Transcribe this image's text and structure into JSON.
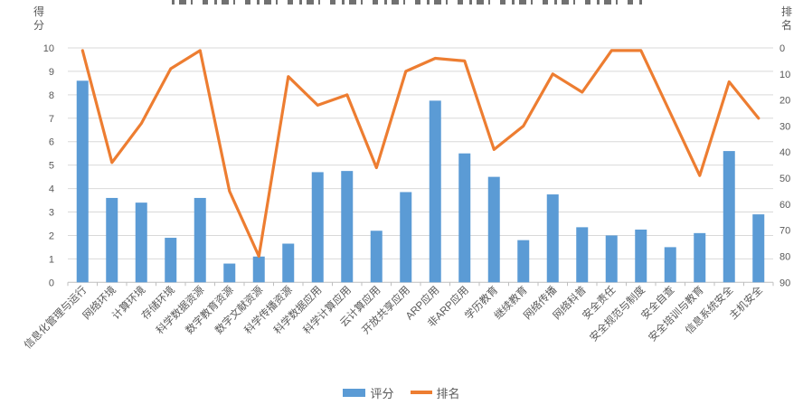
{
  "chart_data": {
    "type": "bar",
    "combo": "bar+line",
    "title": "",
    "title_readable": false,
    "categories": [
      "信息化管理与运行",
      "网络环境",
      "计算环境",
      "存储环境",
      "科学数据资源",
      "数字教育资源",
      "数字文献资源",
      "科学传播资源",
      "科学数据应用",
      "科学计算应用",
      "云计算应用",
      "开放共享应用",
      "ARP应用",
      "非ARP应用",
      "学历教育",
      "继续教育",
      "网络传播",
      "网络科普",
      "安全责任",
      "安全规范与制度",
      "安全自查",
      "安全培训与教育",
      "信息系统安全",
      "主机安全"
    ],
    "series": [
      {
        "name": "评分",
        "type": "bar",
        "axis": "left",
        "color": "#5B9BD5",
        "values": [
          8.6,
          3.6,
          3.4,
          1.9,
          3.6,
          0.8,
          1.1,
          1.65,
          4.7,
          4.75,
          2.2,
          3.85,
          7.75,
          5.5,
          4.5,
          1.8,
          3.75,
          2.35,
          2.0,
          2.25,
          1.5,
          2.1,
          5.6,
          2.9
        ]
      },
      {
        "name": "排名",
        "type": "line",
        "axis": "right",
        "color": "#ED7D31",
        "values": [
          1,
          44,
          29,
          8,
          1,
          55,
          80,
          11,
          22,
          18,
          46,
          9,
          4,
          5,
          39,
          30,
          10,
          17,
          1,
          1,
          25,
          49,
          13,
          27
        ]
      }
    ],
    "left_axis": {
      "title": "得分",
      "min": 0,
      "max": 10,
      "step": 1
    },
    "right_axis": {
      "title": "排名",
      "min": 0,
      "max": 90,
      "step": 10,
      "inverted": true
    },
    "grid": true,
    "legend_position": "bottom"
  },
  "axes": {
    "left_title": "得分",
    "right_title": "排名"
  },
  "legend": {
    "score_label": "评分",
    "rank_label": "排名"
  },
  "colors": {
    "bar": "#5B9BD5",
    "line": "#ED7D31",
    "grid": "#D9D9D9",
    "axis": "#BFBFBF",
    "text": "#595959"
  }
}
